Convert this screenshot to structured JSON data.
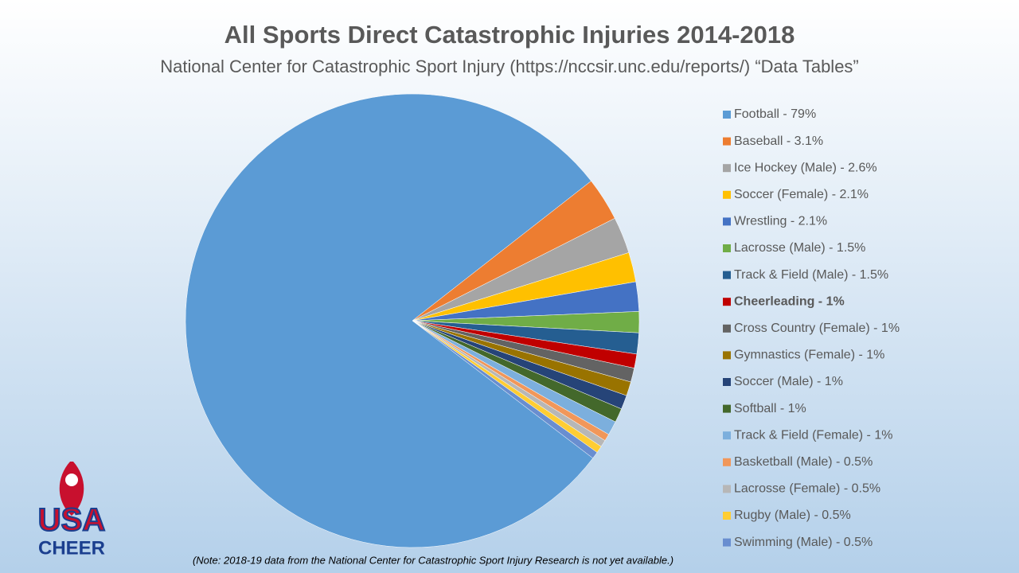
{
  "chart_data": {
    "type": "pie",
    "title": "All Sports Direct Catastrophic Injuries 2014-2018",
    "subtitle": "National Center for Catastrophic Sport Injury (https://nccsir.unc.edu/reports/) “Data Tables”",
    "categories": [
      "Football - 79%",
      "Baseball - 3.1%",
      "Ice Hockey (Male) - 2.6%",
      "Soccer (Female) - 2.1%",
      "Wrestling - 2.1%",
      "Lacrosse (Male) - 1.5%",
      "Track & Field (Male) - 1.5%",
      "Cheerleading - 1%",
      "Cross Country (Female) - 1%",
      "Gymnastics (Female) - 1%",
      "Soccer (Male) - 1%",
      "Softball - 1%",
      "Track & Field (Female) - 1%",
      "Basketball (Male) - 0.5%",
      "Lacrosse (Female) - 0.5%",
      "Rugby (Male) - 0.5%",
      "Swimming (Male) - 0.5%"
    ],
    "values": [
      79,
      3.1,
      2.6,
      2.1,
      2.1,
      1.5,
      1.5,
      1,
      1,
      1,
      1,
      1,
      1,
      0.5,
      0.5,
      0.5,
      0.5
    ],
    "colors": [
      "#5b9bd5",
      "#ed7d31",
      "#a5a5a5",
      "#ffc000",
      "#4472c4",
      "#70ad47",
      "#255e91",
      "#c00000",
      "#636363",
      "#997300",
      "#264478",
      "#43682b",
      "#7cafdd",
      "#f1975a",
      "#b7b7b7",
      "#ffcd33",
      "#698ed0"
    ],
    "legend": "right"
  },
  "note": "(Note: 2018-19 data from the National Center for Catastrophic Sport Injury Research is not yet available.)",
  "logo": {
    "line1": "USA",
    "line2": "CHEER"
  }
}
